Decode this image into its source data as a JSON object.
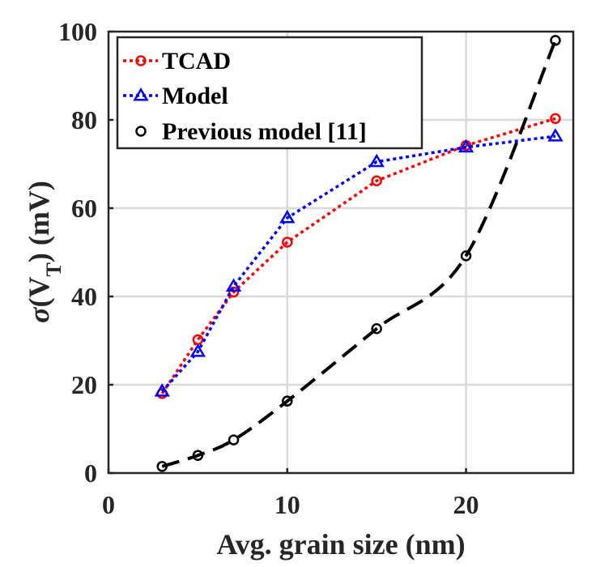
{
  "chart_data": {
    "type": "line",
    "xlabel": "Avg. grain size (nm)",
    "ylabel_parts": {
      "sigma": "σ",
      "open": "(V",
      "sub": "T",
      "close": ") (mV)"
    },
    "xlim": [
      0,
      26
    ],
    "ylim": [
      0,
      100
    ],
    "xticks": [
      "0",
      "10",
      "20"
    ],
    "xtick_values": [
      0,
      10,
      20
    ],
    "yticks": [
      "0",
      "20",
      "40",
      "60",
      "80",
      "100"
    ],
    "ytick_values": [
      0,
      20,
      40,
      60,
      80,
      100
    ],
    "grid": true,
    "legend_position": "top-left",
    "series": [
      {
        "name": "TCAD",
        "color": "#ff0000",
        "marker": "circle",
        "line": "dotted",
        "x": [
          3,
          5,
          7,
          10,
          15,
          20,
          25
        ],
        "y": [
          18,
          30.2,
          41,
          52.3,
          66.2,
          74.2,
          80.3
        ]
      },
      {
        "name": "Model",
        "color": "#0000ff",
        "marker": "triangle",
        "line": "dotted",
        "x": [
          3,
          5,
          7,
          10,
          15,
          20,
          25
        ],
        "y": [
          18.5,
          27.5,
          42.3,
          57.8,
          70.5,
          73.8,
          76.3
        ]
      },
      {
        "name": "Previous model [11]",
        "color": "#000000",
        "marker": "circle",
        "line": "dashed",
        "x": [
          3,
          5,
          7,
          10,
          15,
          20,
          25
        ],
        "y": [
          1.5,
          4,
          7.5,
          16.3,
          32.7,
          49.2,
          98
        ]
      }
    ]
  }
}
